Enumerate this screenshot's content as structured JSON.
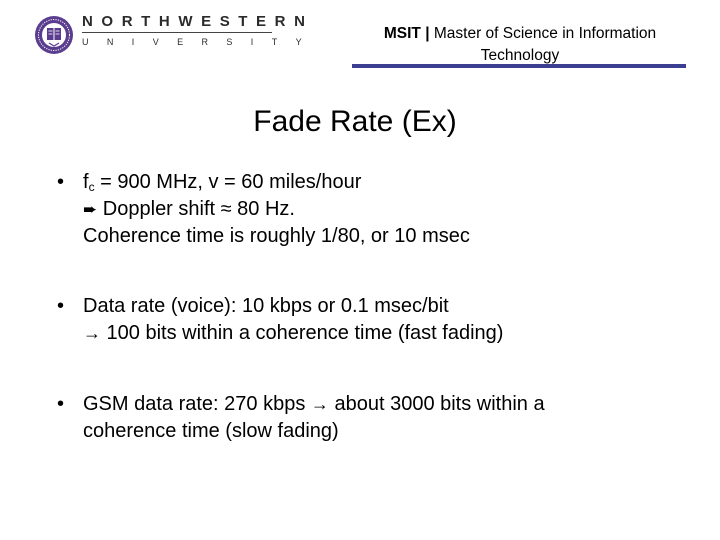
{
  "logo": {
    "icon": "northwestern-seal-icon",
    "line1": "NORTHWESTERN",
    "line2": "UNIVERSITY",
    "color": "#5b3d8f"
  },
  "header": {
    "program_abbrev": "MSIT",
    "separator": "|",
    "program_name": "Master of Science in Information Technology",
    "rule_color": "#3b3e91"
  },
  "slide": {
    "title": "Fade Rate (Ex)",
    "bullets": [
      {
        "marker": "•",
        "line1": {
          "f": "f",
          "sub": "c",
          "rest": " = 900 MHz, v = 60 miles/hour"
        },
        "line2": {
          "arrow": "➨",
          "text": " Doppler shift ≈ 80 Hz."
        },
        "line3": "Coherence time is roughly 1/80, or 10 msec"
      },
      {
        "marker": "•",
        "line1": "Data rate (voice): 10 kbps or 0.1 msec/bit",
        "line2": {
          "arrow": "→",
          "text": " 100 bits within a coherence time (fast fading)"
        }
      },
      {
        "marker": "•",
        "line1": {
          "before": "GSM data rate: 270 kbps ",
          "arrow": "→",
          "after": " about 3000 bits within a"
        },
        "line2": "coherence time (slow fading)"
      }
    ]
  }
}
